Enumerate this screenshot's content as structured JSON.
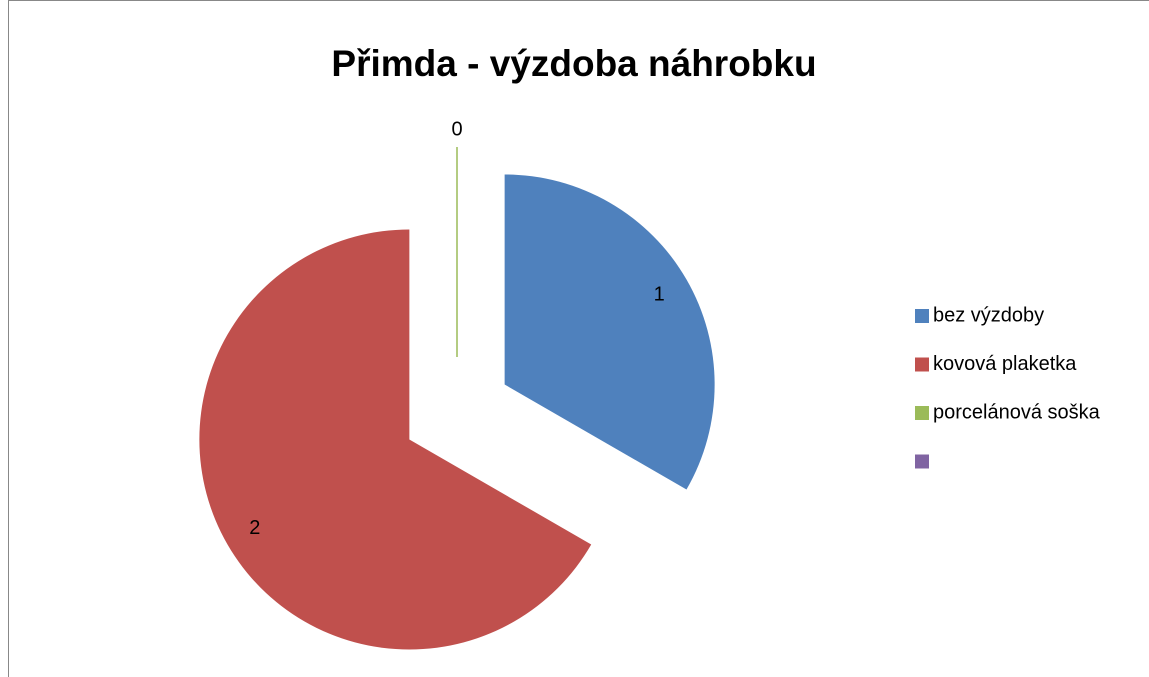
{
  "chart_data": {
    "type": "pie",
    "title": "Přimda -  výzdoba náhrobku",
    "categories": [
      "bez výzdoby",
      "kovová plaketka",
      "porcelánová soška",
      null
    ],
    "values": [
      1,
      2,
      0,
      null
    ],
    "colors": [
      "#4f81bd",
      "#c0504d",
      "#9bbb59",
      "#8064a2"
    ],
    "legend": "right"
  }
}
